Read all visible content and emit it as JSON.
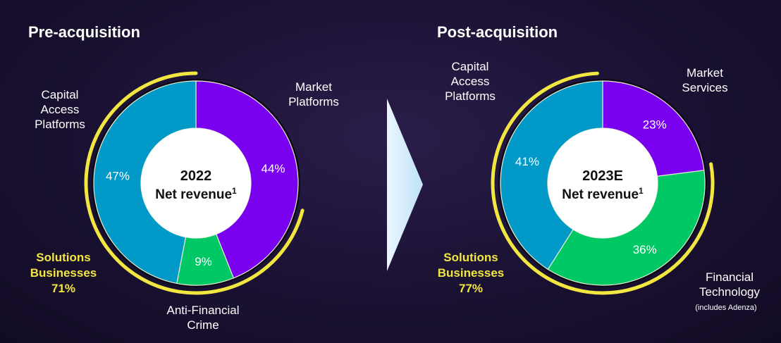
{
  "chart_data": [
    {
      "type": "donut",
      "title": "Pre-acquisition",
      "center_title": "2022",
      "center_subtitle": "Net revenue",
      "footnote_marker": "1",
      "categories": [
        "Market Platforms",
        "Anti-Financial Crime",
        "Capital Access Platforms"
      ],
      "values": [
        44,
        9,
        47
      ],
      "value_labels": [
        "44%",
        "9%",
        "47%"
      ],
      "colors": [
        "#7a00f0",
        "#00c864",
        "#0099c8"
      ],
      "highlight": {
        "label": "Solutions Businesses",
        "value": 71,
        "value_label": "71%",
        "color": "#f2e640"
      }
    },
    {
      "type": "donut",
      "title": "Post-acquisition",
      "center_title": "2023E",
      "center_subtitle": "Net revenue",
      "footnote_marker": "1",
      "categories": [
        "Market Services",
        "Financial Technology",
        "Capital Access Platforms"
      ],
      "values": [
        23,
        36,
        41
      ],
      "value_labels": [
        "23%",
        "36%",
        "41%"
      ],
      "colors": [
        "#7a00f0",
        "#00c864",
        "#0099c8"
      ],
      "category_note": "(includes Adenza)",
      "highlight": {
        "label": "Solutions Businesses",
        "value": 77,
        "value_label": "77%",
        "color": "#f2e640"
      }
    }
  ]
}
